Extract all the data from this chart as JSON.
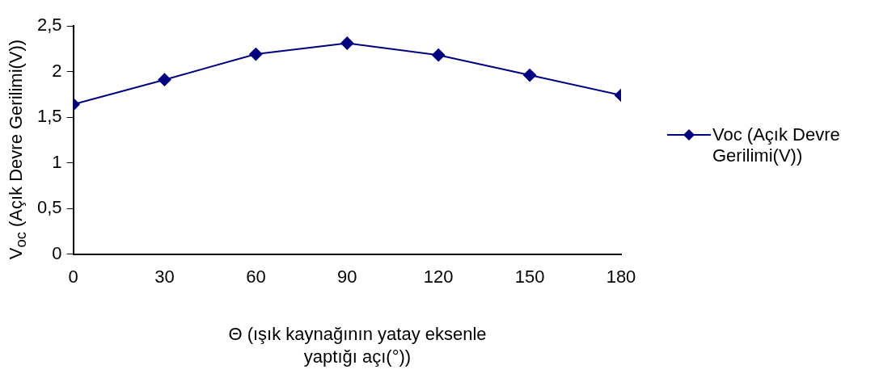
{
  "chart_data": {
    "type": "line",
    "xlabel": "Θ (ışık kaynağının yatay eksenle yaptığı açı(°))",
    "ylabel": "V$_{oc}$ (Açık Devre Gerilimi(V))",
    "x": [
      0,
      30,
      60,
      90,
      120,
      150,
      180
    ],
    "series": [
      {
        "name": "Voc (Açık Devre Gerilimi(V))",
        "color": "#000080",
        "values": [
          1.64,
          1.91,
          2.19,
          2.31,
          2.18,
          1.96,
          1.74
        ]
      }
    ],
    "xlim": [
      0,
      180
    ],
    "xticks": [
      0,
      30,
      60,
      90,
      120,
      150,
      180
    ],
    "ylim": [
      0,
      2.5
    ],
    "yticks": [
      0,
      {
        "value": 0.5,
        "label": "0,5"
      },
      1,
      {
        "value": 1.5,
        "label": "1,5"
      },
      2,
      {
        "value": 2.5,
        "label": "2,5"
      }
    ],
    "grid": false,
    "legend": "right",
    "marker": "diamond",
    "line_style": "solid"
  }
}
